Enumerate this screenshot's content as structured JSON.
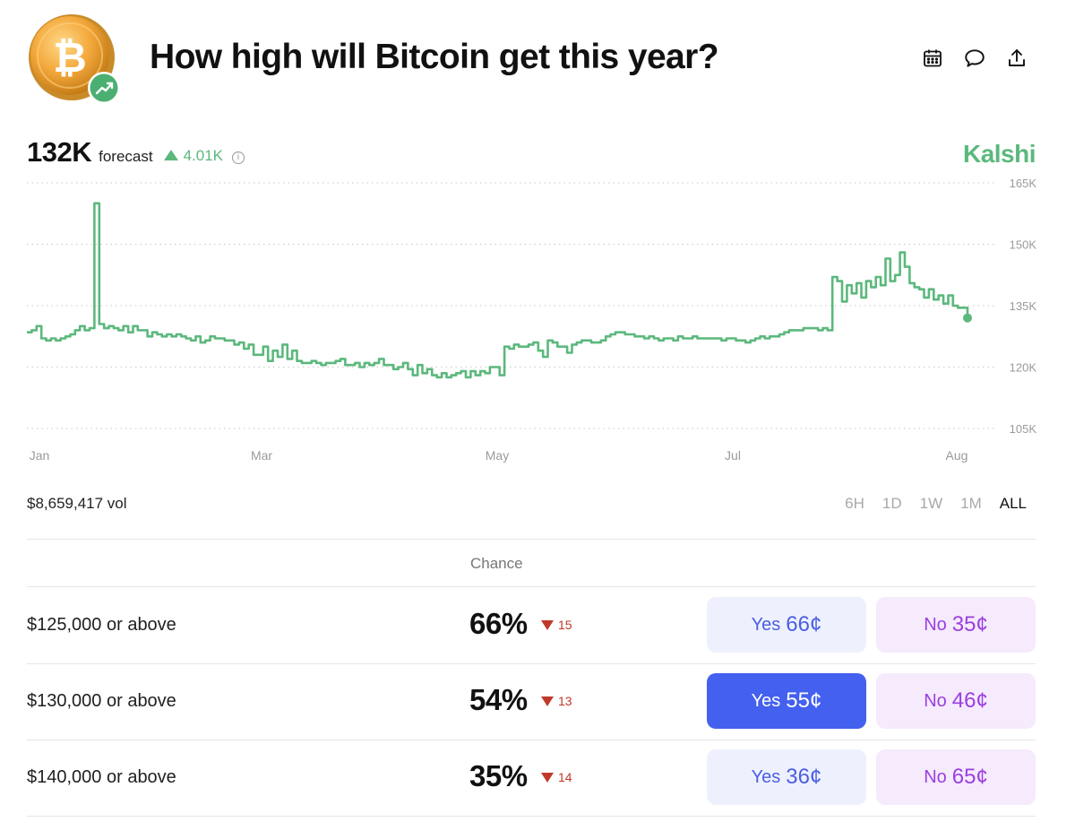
{
  "header": {
    "title": "How high will Bitcoin get this year?",
    "icons": [
      "bitcoin-coin-icon",
      "trending-up-icon",
      "calendar-icon",
      "comment-icon",
      "share-icon"
    ]
  },
  "forecast": {
    "value": "132K",
    "label": "forecast",
    "change": "4.01K",
    "change_direction": "up",
    "brand": "Kalshi"
  },
  "colors": {
    "accent_green": "#5cb87d",
    "down_red": "#c0392b",
    "yes_blue": "#4460ef",
    "no_purple": "#9a3fe0"
  },
  "chart_data": {
    "type": "line",
    "x_tick_labels": [
      "Jan",
      "Mar",
      "May",
      "Jul",
      "Aug"
    ],
    "y_tick_labels": [
      "165K",
      "150K",
      "135K",
      "120K",
      "105K"
    ],
    "ylim": [
      105000,
      165000
    ],
    "grid": true,
    "series": [
      {
        "values": [
          128500,
          129000,
          130000,
          127000,
          126500,
          127000,
          126500,
          127000,
          127500,
          128000,
          129000,
          130000,
          129000,
          129500,
          160000,
          130500,
          129500,
          130000,
          129500,
          129000,
          130000,
          128500,
          130000,
          129000,
          129000,
          127500,
          128500,
          128000,
          127500,
          128000,
          127500,
          128000,
          127500,
          127000,
          126500,
          127500,
          126000,
          126500,
          127500,
          127000,
          127000,
          126500,
          126500,
          125500,
          126000,
          124500,
          125500,
          123000,
          123000,
          125000,
          121500,
          124000,
          122500,
          125500,
          122000,
          124000,
          121500,
          121000,
          121000,
          121500,
          121000,
          120500,
          121000,
          121000,
          121500,
          122000,
          120500,
          120500,
          121000,
          120000,
          121000,
          120500,
          121000,
          122000,
          120500,
          120500,
          119500,
          120000,
          121000,
          119500,
          118000,
          120500,
          118500,
          119500,
          118000,
          117500,
          118500,
          117500,
          118000,
          118500,
          119000,
          117500,
          119000,
          118000,
          119000,
          118500,
          120000,
          120000,
          118000,
          125000,
          124500,
          125500,
          125000,
          125000,
          125500,
          126000,
          124000,
          122500,
          126500,
          126000,
          125000,
          125000,
          123500,
          125500,
          126000,
          126500,
          126500,
          126000,
          126000,
          126500,
          127500,
          128000,
          128500,
          128500,
          128000,
          128000,
          127500,
          127500,
          127000,
          127500,
          127000,
          126500,
          127000,
          127000,
          126500,
          127500,
          127000,
          127000,
          127500,
          127000,
          127000,
          127000,
          127000,
          127000,
          126500,
          127000,
          127000,
          126500,
          126500,
          126000,
          126500,
          127000,
          127500,
          127000,
          127500,
          127500,
          128000,
          128500,
          129000,
          129000,
          129000,
          129500,
          129500,
          129500,
          129000,
          129500,
          129000,
          142000,
          141000,
          136000,
          140000,
          138000,
          140500,
          137000,
          141000,
          139500,
          142000,
          140000,
          146500,
          141000,
          142500,
          148000,
          144500,
          140500,
          139500,
          139000,
          137000,
          139000,
          136500,
          137500,
          135500,
          137500,
          135000,
          134500,
          134500,
          132000
        ]
      }
    ]
  },
  "volume": "$8,659,417 vol",
  "ranges": [
    {
      "label": "6H",
      "active": false
    },
    {
      "label": "1D",
      "active": false
    },
    {
      "label": "1W",
      "active": false
    },
    {
      "label": "1M",
      "active": false
    },
    {
      "label": "ALL",
      "active": true
    }
  ],
  "table": {
    "chance_header": "Chance",
    "rows": [
      {
        "label": "$125,000 or above",
        "chance": "66%",
        "delta": "15",
        "yes_text": "Yes",
        "yes_price": "66¢",
        "no_text": "No",
        "no_price": "35¢",
        "yes_selected": false
      },
      {
        "label": "$130,000 or above",
        "chance": "54%",
        "delta": "13",
        "yes_text": "Yes",
        "yes_price": "55¢",
        "no_text": "No",
        "no_price": "46¢",
        "yes_selected": true
      },
      {
        "label": "$140,000 or above",
        "chance": "35%",
        "delta": "14",
        "yes_text": "Yes",
        "yes_price": "36¢",
        "no_text": "No",
        "no_price": "65¢",
        "yes_selected": false
      }
    ]
  }
}
